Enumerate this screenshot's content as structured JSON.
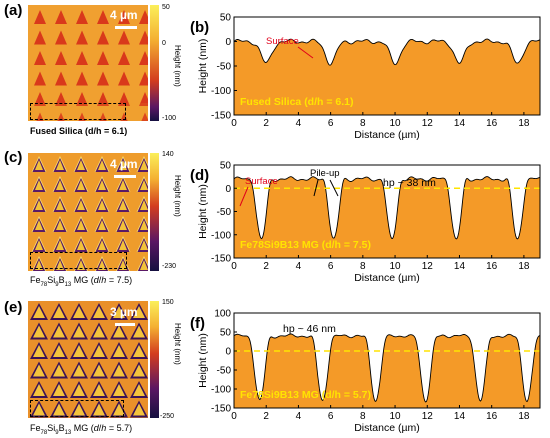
{
  "panels": [
    {
      "label": "(a)",
      "caption": "Fused Silica (d/h = 6.1)",
      "scale": "4 µm",
      "cb_max": "50",
      "cb_mid": "0",
      "cb_min": "-100",
      "cb_title": "Height (nm)"
    },
    {
      "label": "(c)",
      "caption": "Fe78Si9B13 MG (d/h = 7.5)",
      "scale": "4 µm",
      "cb_max": "140",
      "cb_mid": "",
      "cb_min": "-230",
      "cb_title": "Height (nm)"
    },
    {
      "label": "(e)",
      "caption": "Fe78Si9B13 MG (d/h = 5.7)",
      "scale": "3 µm",
      "cb_max": "150",
      "cb_mid": "",
      "cb_min": "-250",
      "cb_title": "Height (nm)"
    }
  ],
  "chart_data": [
    {
      "label": "(b)",
      "type": "area",
      "xlabel": "Distance (µm)",
      "ylabel": "Height (nm)",
      "xlim": [
        0,
        19
      ],
      "ylim": [
        -150,
        50
      ],
      "xticks": [
        0,
        2,
        4,
        6,
        8,
        10,
        12,
        14,
        16,
        18
      ],
      "yticks": [
        -150,
        -100,
        -50,
        0,
        50
      ],
      "legend": "Fused Silica (d/h = 6.1)",
      "annotations": [
        "Surface"
      ],
      "base_level": 0,
      "indents_x": [
        2.0,
        6.0,
        10.0,
        14.0,
        17.6
      ],
      "indent_depth": -45,
      "mean_line": null
    },
    {
      "label": "(d)",
      "type": "area",
      "xlabel": "Distance (µm)",
      "ylabel": "Height (nm)",
      "xlim": [
        0,
        19
      ],
      "ylim": [
        -150,
        50
      ],
      "xticks": [
        0,
        2,
        4,
        6,
        8,
        10,
        12,
        14,
        16,
        18
      ],
      "yticks": [
        -150,
        -100,
        -50,
        0,
        50
      ],
      "legend": "Fe78Si9B13 MG (d/h = 7.5)",
      "annotations": [
        "Surface",
        "Pile-up",
        "hp ~ 38 nm"
      ],
      "base_level": 20,
      "indents_x": [
        1.7,
        6.2,
        9.8,
        13.8,
        17.6
      ],
      "indent_depth": -110,
      "mean_line": 0
    },
    {
      "label": "(f)",
      "type": "area",
      "xlabel": "Distance (µm)",
      "ylabel": "Height (nm)",
      "xlim": [
        0,
        19
      ],
      "ylim": [
        -150,
        100
      ],
      "xticks": [
        0,
        2,
        4,
        6,
        8,
        10,
        12,
        14,
        16,
        18
      ],
      "yticks": [
        -150,
        -100,
        -50,
        0,
        50,
        100
      ],
      "legend": "Fe78Si9B13 MG (d/h = 5.7)",
      "annotations": [
        "hp ~ 46 nm"
      ],
      "base_level": 40,
      "indents_x": [
        1.6,
        5.5,
        8.8,
        11.9,
        15.3,
        18.2
      ],
      "indent_depth": -130,
      "mean_line": 0
    }
  ]
}
